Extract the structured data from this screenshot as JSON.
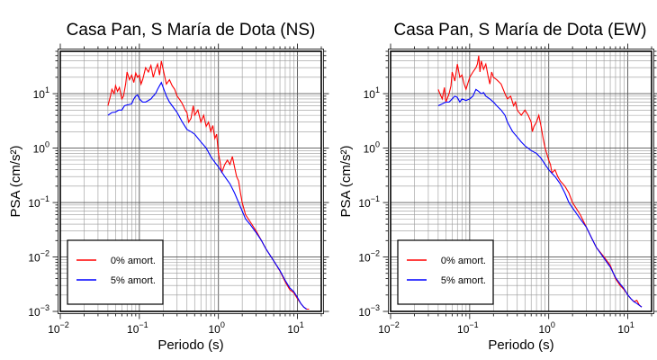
{
  "chart_data": [
    {
      "type": "line",
      "title": "Casa Pan, S María de Dota (NS)",
      "xlabel": "Periodo (s)",
      "ylabel": "PSA (cm/s²)",
      "xscale": "log",
      "yscale": "log",
      "xlim": [
        0.01,
        20
      ],
      "ylim": [
        0.001,
        60
      ],
      "x_ticks": [
        {
          "value": 0.01,
          "base": "10",
          "exp": "−2"
        },
        {
          "value": 0.1,
          "base": "10",
          "exp": "−1"
        },
        {
          "value": 1,
          "base": "10",
          "exp": "0"
        },
        {
          "value": 10,
          "base": "10",
          "exp": "1"
        }
      ],
      "y_ticks": [
        {
          "value": 0.001,
          "base": "10",
          "exp": "−3"
        },
        {
          "value": 0.01,
          "base": "10",
          "exp": "−2"
        },
        {
          "value": 0.1,
          "base": "10",
          "exp": "−1"
        },
        {
          "value": 1,
          "base": "10",
          "exp": "0"
        },
        {
          "value": 10,
          "base": "10",
          "exp": "1"
        }
      ],
      "grid": true,
      "legend_position": "bottom-left",
      "series": [
        {
          "name": "0% amort.",
          "color": "#ff0000",
          "points": [
            [
              0.04,
              6
            ],
            [
              0.043,
              9
            ],
            [
              0.045,
              12
            ],
            [
              0.048,
              10
            ],
            [
              0.05,
              14
            ],
            [
              0.053,
              11
            ],
            [
              0.056,
              13
            ],
            [
              0.06,
              8
            ],
            [
              0.063,
              9
            ],
            [
              0.067,
              15
            ],
            [
              0.07,
              25
            ],
            [
              0.075,
              18
            ],
            [
              0.08,
              22
            ],
            [
              0.085,
              16
            ],
            [
              0.09,
              24
            ],
            [
              0.095,
              20
            ],
            [
              0.1,
              22
            ],
            [
              0.105,
              15
            ],
            [
              0.11,
              18
            ],
            [
              0.12,
              30
            ],
            [
              0.13,
              25
            ],
            [
              0.14,
              33
            ],
            [
              0.15,
              20
            ],
            [
              0.16,
              28
            ],
            [
              0.17,
              35
            ],
            [
              0.18,
              22
            ],
            [
              0.19,
              40
            ],
            [
              0.2,
              28
            ],
            [
              0.21,
              20
            ],
            [
              0.22,
              15
            ],
            [
              0.24,
              18
            ],
            [
              0.26,
              14
            ],
            [
              0.28,
              12
            ],
            [
              0.3,
              9
            ],
            [
              0.32,
              8
            ],
            [
              0.34,
              7
            ],
            [
              0.36,
              6
            ],
            [
              0.38,
              5
            ],
            [
              0.4,
              4.5
            ],
            [
              0.42,
              3
            ],
            [
              0.45,
              3.5
            ],
            [
              0.48,
              6
            ],
            [
              0.5,
              4
            ],
            [
              0.55,
              5
            ],
            [
              0.6,
              3
            ],
            [
              0.65,
              4
            ],
            [
              0.7,
              2.5
            ],
            [
              0.75,
              3
            ],
            [
              0.8,
              2
            ],
            [
              0.85,
              2.6
            ],
            [
              0.9,
              1.5
            ],
            [
              0.95,
              1.8
            ],
            [
              1,
              0.8
            ],
            [
              1.05,
              0.55
            ],
            [
              1.1,
              0.35
            ],
            [
              1.2,
              0.5
            ],
            [
              1.3,
              0.6
            ],
            [
              1.4,
              0.5
            ],
            [
              1.5,
              0.7
            ],
            [
              1.6,
              0.45
            ],
            [
              1.7,
              0.3
            ],
            [
              1.8,
              0.25
            ],
            [
              1.9,
              0.15
            ],
            [
              2,
              0.1
            ],
            [
              2.2,
              0.06
            ],
            [
              2.5,
              0.045
            ],
            [
              3,
              0.03
            ],
            [
              3.5,
              0.02
            ],
            [
              4,
              0.014
            ],
            [
              5,
              0.0085
            ],
            [
              6,
              0.0055
            ],
            [
              7,
              0.0035
            ],
            [
              8,
              0.0025
            ],
            [
              9,
              0.0022
            ],
            [
              10,
              0.0017
            ],
            [
              11,
              0.0014
            ],
            [
              12,
              0.0012
            ],
            [
              13,
              0.0011
            ],
            [
              14,
              0.0011
            ]
          ]
        },
        {
          "name": "5% amort.",
          "color": "#0000ff",
          "points": [
            [
              0.04,
              4
            ],
            [
              0.045,
              4.5
            ],
            [
              0.05,
              4.6
            ],
            [
              0.055,
              5
            ],
            [
              0.06,
              5
            ],
            [
              0.065,
              6
            ],
            [
              0.07,
              6.2
            ],
            [
              0.08,
              6.5
            ],
            [
              0.085,
              8
            ],
            [
              0.09,
              9
            ],
            [
              0.095,
              9.5
            ],
            [
              0.1,
              8
            ],
            [
              0.11,
              7
            ],
            [
              0.12,
              7
            ],
            [
              0.13,
              7.5
            ],
            [
              0.14,
              8
            ],
            [
              0.15,
              9
            ],
            [
              0.16,
              10
            ],
            [
              0.17,
              12
            ],
            [
              0.18,
              14
            ],
            [
              0.19,
              16
            ],
            [
              0.2,
              13
            ],
            [
              0.22,
              9
            ],
            [
              0.24,
              7
            ],
            [
              0.26,
              6
            ],
            [
              0.3,
              4.5
            ],
            [
              0.35,
              3
            ],
            [
              0.4,
              2.2
            ],
            [
              0.45,
              2
            ],
            [
              0.5,
              1.8
            ],
            [
              0.6,
              1.3
            ],
            [
              0.7,
              1
            ],
            [
              0.8,
              0.7
            ],
            [
              0.9,
              0.55
            ],
            [
              1,
              0.45
            ],
            [
              1.2,
              0.3
            ],
            [
              1.4,
              0.22
            ],
            [
              1.6,
              0.15
            ],
            [
              1.8,
              0.1
            ],
            [
              2,
              0.07
            ],
            [
              2.2,
              0.05
            ],
            [
              2.5,
              0.04
            ],
            [
              3,
              0.028
            ],
            [
              3.5,
              0.02
            ],
            [
              4,
              0.014
            ],
            [
              5,
              0.0085
            ],
            [
              6,
              0.0056
            ],
            [
              7,
              0.0037
            ],
            [
              8,
              0.0027
            ],
            [
              9,
              0.0023
            ],
            [
              10,
              0.0018
            ],
            [
              11,
              0.0014
            ],
            [
              12,
              0.0012
            ],
            [
              13,
              0.0011
            ]
          ]
        }
      ]
    },
    {
      "type": "line",
      "title": "Casa Pan, S María de Dota (EW)",
      "xlabel": "Periodo (s)",
      "ylabel": "PSA (cm/s²)",
      "xscale": "log",
      "yscale": "log",
      "xlim": [
        0.01,
        20
      ],
      "ylim": [
        0.001,
        60
      ],
      "x_ticks": [
        {
          "value": 0.01,
          "base": "10",
          "exp": "−2"
        },
        {
          "value": 0.1,
          "base": "10",
          "exp": "−1"
        },
        {
          "value": 1,
          "base": "10",
          "exp": "0"
        },
        {
          "value": 10,
          "base": "10",
          "exp": "1"
        }
      ],
      "y_ticks": [
        {
          "value": 0.001,
          "base": "10",
          "exp": "−3"
        },
        {
          "value": 0.01,
          "base": "10",
          "exp": "−2"
        },
        {
          "value": 0.1,
          "base": "10",
          "exp": "−1"
        },
        {
          "value": 1,
          "base": "10",
          "exp": "0"
        },
        {
          "value": 10,
          "base": "10",
          "exp": "1"
        }
      ],
      "grid": true,
      "legend_position": "bottom-left",
      "series": [
        {
          "name": "0% amort.",
          "color": "#ff0000",
          "points": [
            [
              0.04,
              12
            ],
            [
              0.042,
              10
            ],
            [
              0.045,
              8
            ],
            [
              0.048,
              13
            ],
            [
              0.05,
              7
            ],
            [
              0.055,
              10
            ],
            [
              0.058,
              14
            ],
            [
              0.06,
              25
            ],
            [
              0.065,
              17
            ],
            [
              0.07,
              35
            ],
            [
              0.075,
              20
            ],
            [
              0.08,
              22
            ],
            [
              0.085,
              15
            ],
            [
              0.09,
              12
            ],
            [
              0.1,
              20
            ],
            [
              0.11,
              25
            ],
            [
              0.12,
              30
            ],
            [
              0.125,
              35
            ],
            [
              0.13,
              50
            ],
            [
              0.135,
              25
            ],
            [
              0.14,
              40
            ],
            [
              0.15,
              28
            ],
            [
              0.16,
              35
            ],
            [
              0.17,
              22
            ],
            [
              0.18,
              15
            ],
            [
              0.19,
              25
            ],
            [
              0.2,
              20
            ],
            [
              0.22,
              18
            ],
            [
              0.25,
              15
            ],
            [
              0.28,
              10
            ],
            [
              0.3,
              8
            ],
            [
              0.33,
              9
            ],
            [
              0.36,
              6
            ],
            [
              0.38,
              7
            ],
            [
              0.4,
              5
            ],
            [
              0.45,
              4
            ],
            [
              0.5,
              5
            ],
            [
              0.55,
              4
            ],
            [
              0.6,
              3
            ],
            [
              0.62,
              2
            ],
            [
              0.65,
              2.5
            ],
            [
              0.7,
              3
            ],
            [
              0.75,
              4
            ],
            [
              0.8,
              2.5
            ],
            [
              0.85,
              1.5
            ],
            [
              0.9,
              1
            ],
            [
              1,
              0.6
            ],
            [
              1.05,
              0.5
            ],
            [
              1.1,
              0.35
            ],
            [
              1.2,
              0.4
            ],
            [
              1.3,
              0.3
            ],
            [
              1.4,
              0.25
            ],
            [
              1.6,
              0.2
            ],
            [
              1.8,
              0.15
            ],
            [
              2,
              0.1
            ],
            [
              2.5,
              0.06
            ],
            [
              3,
              0.035
            ],
            [
              3.5,
              0.022
            ],
            [
              4,
              0.015
            ],
            [
              5,
              0.01
            ],
            [
              6,
              0.007
            ],
            [
              7,
              0.004
            ],
            [
              8,
              0.003
            ],
            [
              9,
              0.0025
            ],
            [
              10,
              0.002
            ],
            [
              11,
              0.0017
            ],
            [
              12,
              0.0015
            ],
            [
              13,
              0.0016
            ],
            [
              14,
              0.0013
            ],
            [
              15,
              0.0012
            ]
          ]
        },
        {
          "name": "5% amort.",
          "color": "#0000ff",
          "points": [
            [
              0.04,
              6
            ],
            [
              0.045,
              6.5
            ],
            [
              0.05,
              7
            ],
            [
              0.055,
              7
            ],
            [
              0.06,
              8
            ],
            [
              0.065,
              9
            ],
            [
              0.07,
              8.5
            ],
            [
              0.075,
              7
            ],
            [
              0.08,
              8
            ],
            [
              0.09,
              7.5
            ],
            [
              0.1,
              8
            ],
            [
              0.11,
              9
            ],
            [
              0.12,
              12
            ],
            [
              0.13,
              11
            ],
            [
              0.14,
              10
            ],
            [
              0.15,
              10.5
            ],
            [
              0.16,
              9
            ],
            [
              0.18,
              8
            ],
            [
              0.2,
              7
            ],
            [
              0.22,
              6
            ],
            [
              0.25,
              5
            ],
            [
              0.28,
              4
            ],
            [
              0.3,
              3
            ],
            [
              0.35,
              2
            ],
            [
              0.4,
              1.6
            ],
            [
              0.45,
              1.3
            ],
            [
              0.5,
              1.1
            ],
            [
              0.6,
              0.9
            ],
            [
              0.7,
              0.8
            ],
            [
              0.8,
              0.65
            ],
            [
              0.9,
              0.5
            ],
            [
              1,
              0.4
            ],
            [
              1.2,
              0.3
            ],
            [
              1.4,
              0.22
            ],
            [
              1.6,
              0.15
            ],
            [
              1.8,
              0.1
            ],
            [
              2,
              0.08
            ],
            [
              2.5,
              0.05
            ],
            [
              3,
              0.035
            ],
            [
              3.5,
              0.022
            ],
            [
              4,
              0.015
            ],
            [
              5,
              0.0095
            ],
            [
              6,
              0.0065
            ],
            [
              7,
              0.0042
            ],
            [
              8,
              0.0032
            ],
            [
              9,
              0.0026
            ],
            [
              10,
              0.002
            ],
            [
              11,
              0.0017
            ],
            [
              12,
              0.0015
            ],
            [
              13,
              0.0014
            ],
            [
              15,
              0.0012
            ]
          ]
        }
      ]
    }
  ]
}
